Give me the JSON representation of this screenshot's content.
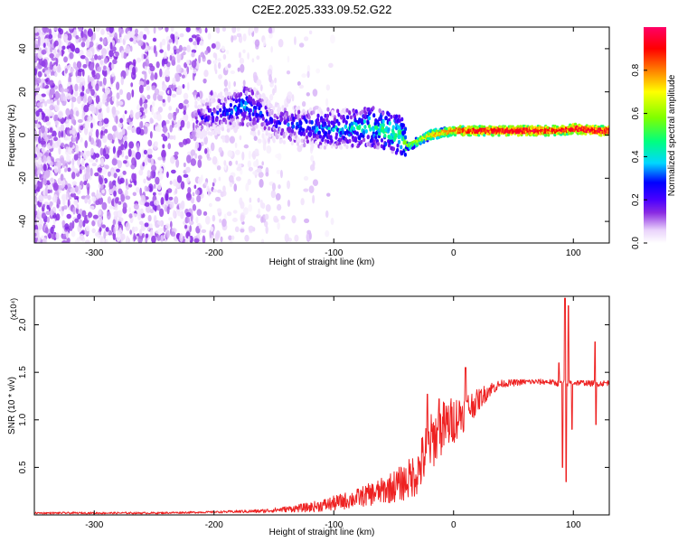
{
  "title": "C2E2.2025.333.09.52.G22",
  "colorbar": {
    "label": "Normalized spectral amplitude",
    "ticks": [
      "0.0",
      "0.2",
      "0.4",
      "0.6",
      "0.8"
    ],
    "tick_values": [
      0.0,
      0.2,
      0.4,
      0.6,
      0.8
    ],
    "range": [
      0,
      1
    ],
    "colors": [
      "#ffffff",
      "#e9d2fb",
      "#8a2be2",
      "#4b00ff",
      "#0000ff",
      "#00d7ff",
      "#00ff7f",
      "#7fff00",
      "#ffff00",
      "#ff7f00",
      "#ff0000",
      "#ff0066"
    ]
  },
  "chart_data": [
    {
      "type": "heatmap",
      "name": "spectrogram",
      "xlabel": "Height of straight line (km)",
      "ylabel": "Frequency (Hz)",
      "xlim": [
        -350,
        130
      ],
      "ylim": [
        -50,
        50
      ],
      "xticks": [
        -300,
        -200,
        -100,
        0,
        100
      ],
      "xtick_labels": [
        "-300",
        "-200",
        "-100",
        "0",
        "100"
      ],
      "yticks": [
        -40,
        -20,
        0,
        20,
        40
      ],
      "ytick_labels": [
        "-40",
        "-20",
        "0",
        "20",
        "40"
      ],
      "ridge": {
        "x": [
          -210,
          -190,
          -175,
          -165,
          -150,
          -130,
          -110,
          -90,
          -70,
          -55,
          -45,
          -38,
          -30,
          -20,
          -10,
          0,
          10,
          30,
          60,
          90,
          100,
          120,
          130
        ],
        "frequency": [
          8,
          11,
          14,
          12,
          6,
          4,
          3,
          3,
          4,
          2,
          0,
          -5,
          -3,
          0,
          1,
          2,
          2,
          2,
          2,
          2,
          3,
          2,
          2
        ],
        "amplitude": [
          0.25,
          0.35,
          0.45,
          0.35,
          0.3,
          0.35,
          0.4,
          0.45,
          0.5,
          0.55,
          0.55,
          0.6,
          0.7,
          0.75,
          0.8,
          0.85,
          0.9,
          0.95,
          0.95,
          0.9,
          0.95,
          0.95,
          0.95
        ]
      },
      "notes": "Broadband noise from -350 to about -200 km, scattered noise to -120 km, converging onto a near-zero frequency line from about -40 km upward."
    },
    {
      "type": "line",
      "name": "snr",
      "xlabel": "Height of straight line (km)",
      "ylabel": "SNR (10 * v/v)",
      "y_multiplier": "(x10⁴)",
      "xlim": [
        -350,
        130
      ],
      "ylim": [
        0,
        2.3
      ],
      "xticks": [
        -300,
        -200,
        -100,
        0,
        100
      ],
      "xtick_labels": [
        "-300",
        "-200",
        "-100",
        "0",
        "100"
      ],
      "yticks": [
        0.5,
        1.0,
        1.5,
        2.0
      ],
      "ytick_labels": [
        "0.5",
        "1.0",
        "1.5",
        "2.0"
      ],
      "series": [
        {
          "name": "SNR",
          "color": "#ee2222",
          "x": [
            -350,
            -300,
            -250,
            -200,
            -160,
            -140,
            -120,
            -100,
            -80,
            -60,
            -40,
            -30,
            -25,
            -20,
            -10,
            0,
            10,
            20,
            30,
            40,
            60,
            80,
            88,
            92,
            95,
            98,
            100,
            110,
            115,
            118,
            120,
            130
          ],
          "y": [
            0.02,
            0.02,
            0.02,
            0.03,
            0.04,
            0.06,
            0.08,
            0.12,
            0.18,
            0.25,
            0.35,
            0.45,
            0.6,
            0.75,
            0.9,
            1.0,
            1.1,
            1.2,
            1.32,
            1.38,
            1.4,
            1.4,
            1.38,
            1.4,
            1.38,
            1.4,
            1.39,
            1.39,
            1.38,
            1.4,
            1.38,
            1.39
          ],
          "noise_amplitude": [
            0.01,
            0.01,
            0.01,
            0.01,
            0.02,
            0.03,
            0.05,
            0.08,
            0.1,
            0.14,
            0.2,
            0.25,
            0.3,
            0.3,
            0.3,
            0.25,
            0.2,
            0.12,
            0.08,
            0.04,
            0.03,
            0.03,
            0.03,
            0.03,
            0.03,
            0.03,
            0.03,
            0.03,
            0.03,
            0.03,
            0.03,
            0.03
          ],
          "spikes": [
            {
              "x": -22,
              "y": 1.27
            },
            {
              "x": -12,
              "y": 1.22
            },
            {
              "x": 10,
              "y": 1.55
            },
            {
              "x": 88,
              "y": 1.6
            },
            {
              "x": 91,
              "y": 0.5
            },
            {
              "x": 93,
              "y": 2.28
            },
            {
              "x": 94,
              "y": 0.35
            },
            {
              "x": 96,
              "y": 2.2
            },
            {
              "x": 99,
              "y": 0.9
            },
            {
              "x": 118,
              "y": 1.82
            },
            {
              "x": 119,
              "y": 0.95
            }
          ]
        }
      ]
    }
  ]
}
